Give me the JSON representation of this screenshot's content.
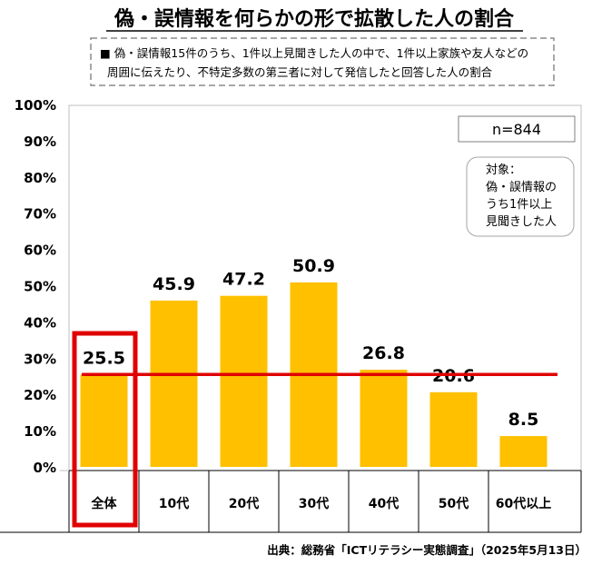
{
  "chart_data": {
    "type": "bar",
    "title": "偽・誤情報を何らかの形で拡散した人の割合",
    "description_lines": [
      "■ 偽・誤情報15件のうち、1件以上見聞きした人の中で、1件以上家族や友人などの",
      "周囲に伝えたり、不特定多数の第三者に対して発信したと回答した人の割合"
    ],
    "categories": [
      "全体",
      "10代",
      "20代",
      "30代",
      "40代",
      "50代",
      "60代以上"
    ],
    "values": [
      25.5,
      45.9,
      47.2,
      50.9,
      26.8,
      20.6,
      8.5
    ],
    "data_labels": [
      "25.5",
      "45.9",
      "47.2",
      "50.9",
      "26.8",
      "20.6",
      "8.5"
    ],
    "yticks": [
      "0%",
      "10%",
      "20%",
      "30%",
      "40%",
      "50%",
      "60%",
      "70%",
      "80%",
      "90%",
      "100%"
    ],
    "ylim": [
      0,
      100
    ],
    "reference_line_value": 25.5,
    "highlight_category": "全体",
    "sample_size": "n=844",
    "target_note_lines": [
      "対象：",
      "偽・誤情報の",
      "うち1件以上",
      "見聞きした人"
    ],
    "source": "出典：総務省「ICTリテラシー実態調査」（2025年5月13日）",
    "grid": false,
    "colors": {
      "bar": "#FFC000",
      "reference_line": "#E00000",
      "highlight_box": "#E00000",
      "axis": "#000000"
    }
  }
}
